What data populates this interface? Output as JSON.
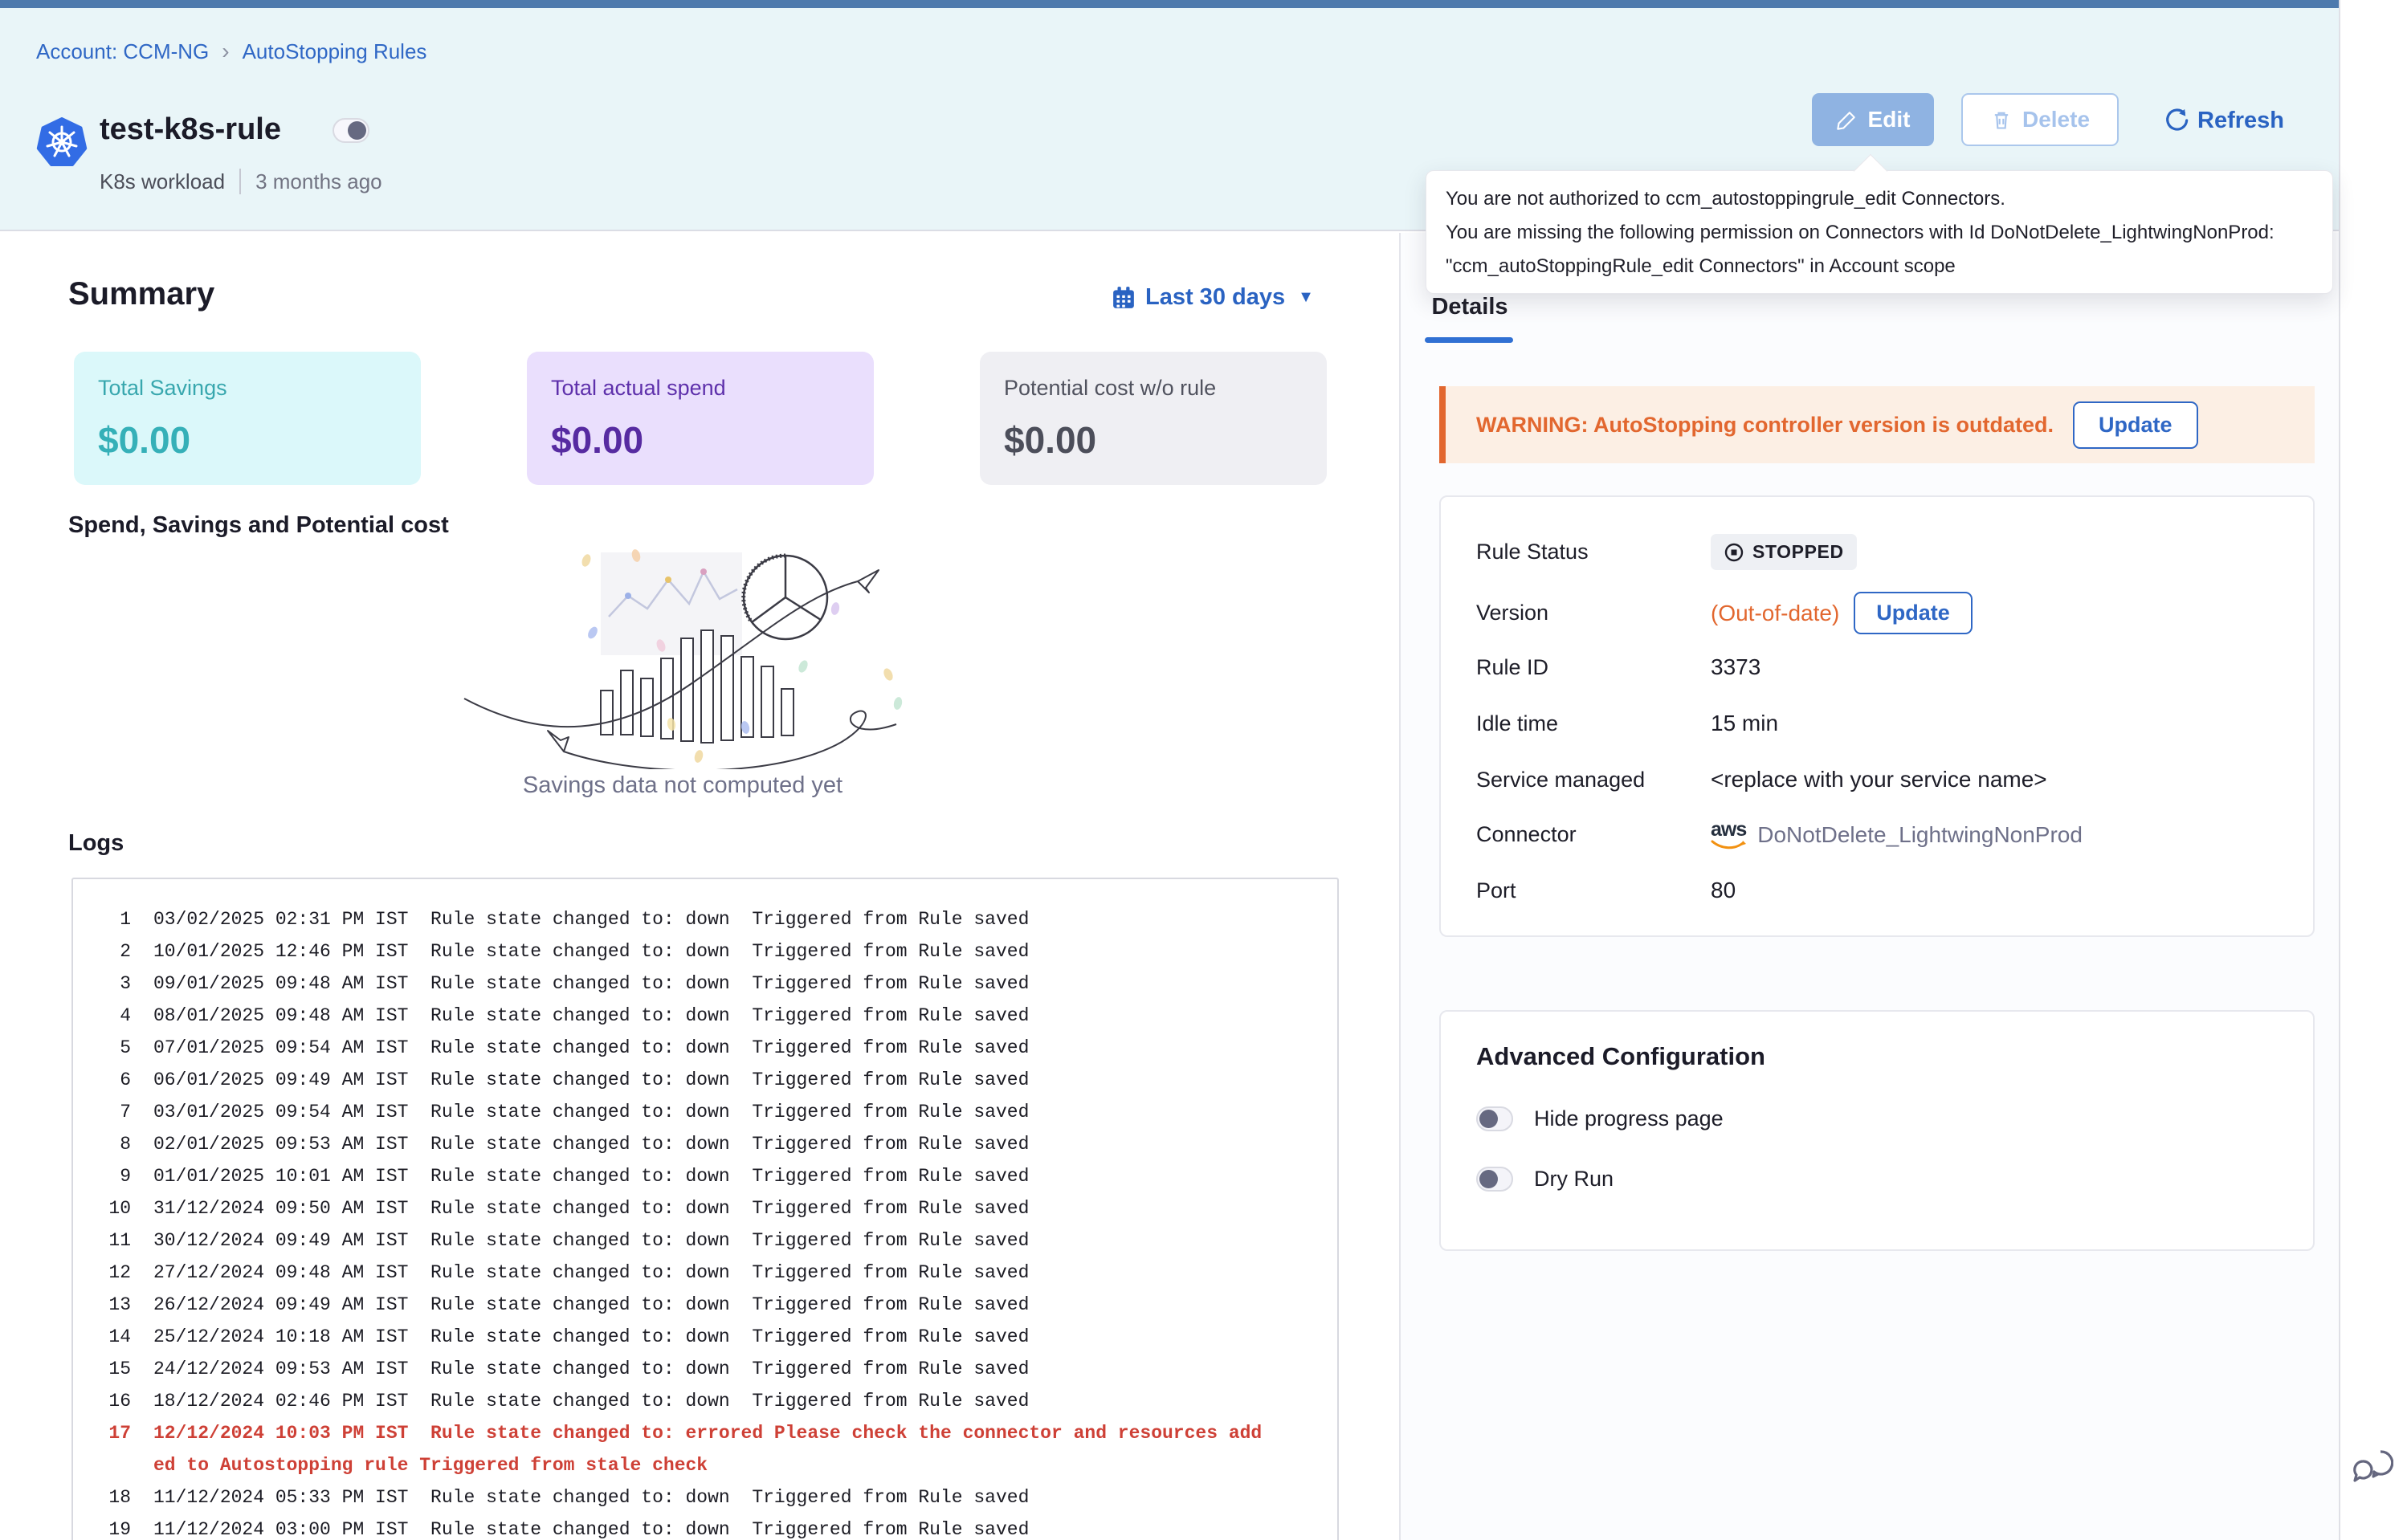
{
  "breadcrumb": {
    "account": "Account: CCM-NG",
    "separator": "›",
    "section": "AutoStopping Rules"
  },
  "header": {
    "title": "test-k8s-rule",
    "workload_type": "K8s workload",
    "age": "3 months ago",
    "edit_label": "Edit",
    "delete_label": "Delete",
    "refresh_label": "Refresh"
  },
  "tooltip": {
    "line1": "You are not authorized to ccm_autostoppingrule_edit Connectors.",
    "line2": "You are missing the following permission on Connectors with Id DoNotDelete_LightwingNonProd:",
    "line3": "\"ccm_autoStoppingRule_edit Connectors\" in Account scope"
  },
  "summary": {
    "heading": "Summary",
    "date_range": "Last 30 days",
    "cards": [
      {
        "label": "Total Savings",
        "value": "$0.00",
        "bg": "#dbf8fa",
        "fg": "#35b0b8"
      },
      {
        "label": "Total actual spend",
        "value": "$0.00",
        "bg": "#eadffd",
        "fg": "#572ba1"
      },
      {
        "label": "Potential cost w/o rule",
        "value": "$0.00",
        "bg": "#efeff3",
        "fg": "#4c4e5a"
      }
    ],
    "chart_heading": "Spend, Savings and Potential cost",
    "empty_message": "Savings data not computed yet"
  },
  "logs": {
    "heading": "Logs",
    "entries": [
      {
        "n": 1,
        "time": "03/02/2025 02:31 PM IST",
        "message": "Rule state changed to: down  Triggered from Rule saved",
        "error": false
      },
      {
        "n": 2,
        "time": "10/01/2025 12:46 PM IST",
        "message": "Rule state changed to: down  Triggered from Rule saved",
        "error": false
      },
      {
        "n": 3,
        "time": "09/01/2025 09:48 AM IST",
        "message": "Rule state changed to: down  Triggered from Rule saved",
        "error": false
      },
      {
        "n": 4,
        "time": "08/01/2025 09:48 AM IST",
        "message": "Rule state changed to: down  Triggered from Rule saved",
        "error": false
      },
      {
        "n": 5,
        "time": "07/01/2025 09:54 AM IST",
        "message": "Rule state changed to: down  Triggered from Rule saved",
        "error": false
      },
      {
        "n": 6,
        "time": "06/01/2025 09:49 AM IST",
        "message": "Rule state changed to: down  Triggered from Rule saved",
        "error": false
      },
      {
        "n": 7,
        "time": "03/01/2025 09:54 AM IST",
        "message": "Rule state changed to: down  Triggered from Rule saved",
        "error": false
      },
      {
        "n": 8,
        "time": "02/01/2025 09:53 AM IST",
        "message": "Rule state changed to: down  Triggered from Rule saved",
        "error": false
      },
      {
        "n": 9,
        "time": "01/01/2025 10:01 AM IST",
        "message": "Rule state changed to: down  Triggered from Rule saved",
        "error": false
      },
      {
        "n": 10,
        "time": "31/12/2024 09:50 AM IST",
        "message": "Rule state changed to: down  Triggered from Rule saved",
        "error": false
      },
      {
        "n": 11,
        "time": "30/12/2024 09:49 AM IST",
        "message": "Rule state changed to: down  Triggered from Rule saved",
        "error": false
      },
      {
        "n": 12,
        "time": "27/12/2024 09:48 AM IST",
        "message": "Rule state changed to: down  Triggered from Rule saved",
        "error": false
      },
      {
        "n": 13,
        "time": "26/12/2024 09:49 AM IST",
        "message": "Rule state changed to: down  Triggered from Rule saved",
        "error": false
      },
      {
        "n": 14,
        "time": "25/12/2024 10:18 AM IST",
        "message": "Rule state changed to: down  Triggered from Rule saved",
        "error": false
      },
      {
        "n": 15,
        "time": "24/12/2024 09:53 AM IST",
        "message": "Rule state changed to: down  Triggered from Rule saved",
        "error": false
      },
      {
        "n": 16,
        "time": "18/12/2024 02:46 PM IST",
        "message": "Rule state changed to: down  Triggered from Rule saved",
        "error": false
      },
      {
        "n": 17,
        "time": "12/12/2024 10:03 PM IST",
        "message": "Rule state changed to: errored Please check the connector and resources added to Autostopping rule Triggered from stale check",
        "error": true
      },
      {
        "n": 18,
        "time": "11/12/2024 05:33 PM IST",
        "message": "Rule state changed to: down  Triggered from Rule saved",
        "error": false
      },
      {
        "n": 19,
        "time": "11/12/2024 03:00 PM IST",
        "message": "Rule state changed to: down  Triggered from Rule saved",
        "error": false
      }
    ]
  },
  "details": {
    "tab_label": "Details",
    "warning_text": "WARNING: AutoStopping controller version is outdated.",
    "warning_button": "Update",
    "rule_status": {
      "label": "Rule Status",
      "value": "STOPPED"
    },
    "version": {
      "label": "Version",
      "value": "(Out-of-date)",
      "button": "Update"
    },
    "rule_id": {
      "label": "Rule ID",
      "value": "3373"
    },
    "idle_time": {
      "label": "Idle time",
      "value": "15 min"
    },
    "service_managed": {
      "label": "Service managed",
      "value": "<replace with your service name>"
    },
    "connector": {
      "label": "Connector",
      "provider": "aws",
      "value": "DoNotDelete_LightwingNonProd"
    },
    "port": {
      "label": "Port",
      "value": "80"
    }
  },
  "advanced": {
    "heading": "Advanced Configuration",
    "toggle1": "Hide progress page",
    "toggle2": "Dry Run"
  },
  "colors": {
    "accent_blue": "#2f67c5",
    "warning_orange": "#e2672f",
    "top_strip": "#4e7aad",
    "header_bg": "#e9f5f8",
    "error_red": "#ce4036",
    "k8s_blue": "#326ce5"
  }
}
